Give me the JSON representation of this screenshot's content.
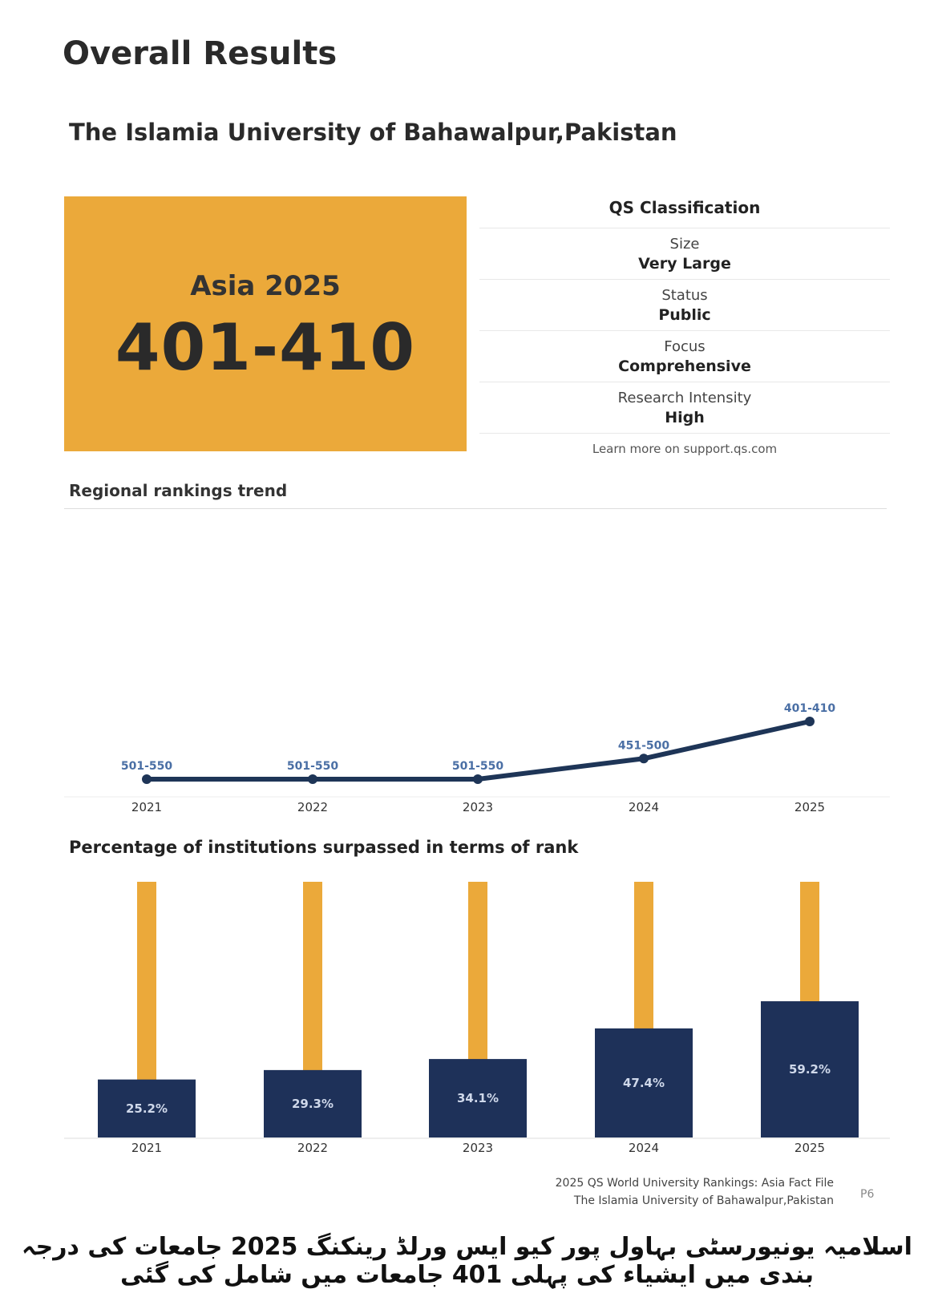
{
  "page": {
    "title": "Overall Results",
    "university": "The Islamia University of Bahawalpur,Pakistan"
  },
  "rank_box": {
    "label": "Asia 2025",
    "value": "401-410",
    "color": "#eba93a"
  },
  "classification": {
    "heading": "QS Classification",
    "rows": [
      {
        "label": "Size",
        "value": "Very Large"
      },
      {
        "label": "Status",
        "value": "Public"
      },
      {
        "label": "Focus",
        "value": "Comprehensive"
      },
      {
        "label": "Research Intensity",
        "value": "High"
      }
    ],
    "learn_more": "Learn more on support.qs.com"
  },
  "footer": {
    "line1": "2025 QS World University Rankings: Asia Fact File",
    "line2": "The Islamia University of Bahawalpur,Pakistan",
    "page": "P6"
  },
  "caption_urdu": "اسلامیہ یونیورسٹی بہاول پور کیو ایس ورلڈ رینکنگ 2025 جامعات کی درجہ بندی میں ایشیاء کی پہلی 401 جامعات میں شامل کی گئی",
  "chart_data": [
    {
      "type": "line",
      "title": "Regional rankings trend",
      "x": [
        "2021",
        "2022",
        "2023",
        "2024",
        "2025"
      ],
      "labels": [
        "501-550",
        "501-550",
        "501-550",
        "451-500",
        "401-410"
      ],
      "values": [
        550,
        550,
        550,
        500,
        410
      ],
      "y_inverted": true,
      "colors": {
        "line": "#1e3557",
        "label": "#4a6fa5"
      }
    },
    {
      "type": "bar",
      "title": "Percentage of institutions surpassed in terms of rank",
      "categories": [
        "2021",
        "2022",
        "2023",
        "2024",
        "2025"
      ],
      "values": [
        25.2,
        29.3,
        34.1,
        47.4,
        59.2
      ],
      "labels": [
        "25.2%",
        "29.3%",
        "34.1%",
        "47.4%",
        "59.2%"
      ],
      "ylim": [
        0,
        100
      ],
      "colors": {
        "bar": "#1e3159",
        "background": "#eba93a",
        "label": "#cfd8ea"
      }
    }
  ]
}
